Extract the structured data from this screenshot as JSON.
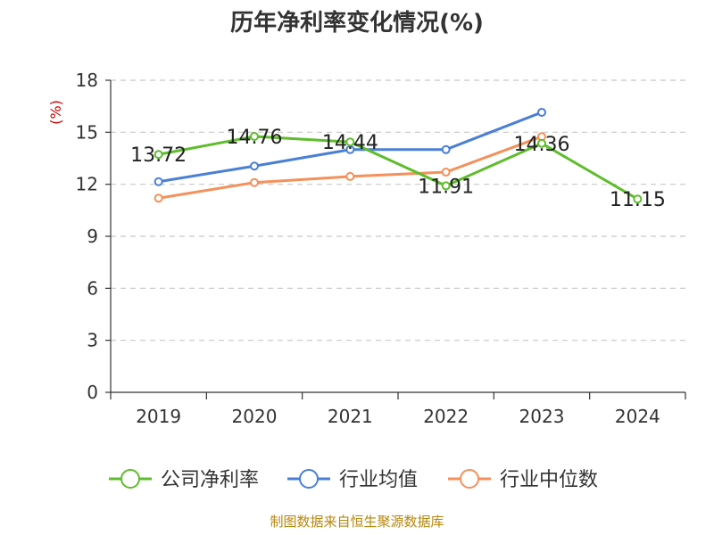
{
  "chart_data": {
    "type": "line",
    "title": "历年净利率变化情况(%)",
    "ylabel": "(%)",
    "xlabel": "",
    "categories": [
      "2019",
      "2020",
      "2021",
      "2022",
      "2023",
      "2024"
    ],
    "ylim": [
      0,
      18
    ],
    "yticks": [
      0,
      3,
      6,
      9,
      12,
      15,
      18
    ],
    "grid": true,
    "legend_position": "bottom",
    "series": [
      {
        "name": "公司净利率",
        "color": "#5ebd2c",
        "values": [
          13.72,
          14.76,
          14.44,
          11.91,
          14.36,
          11.15
        ],
        "labels": [
          "13.72",
          "14.76",
          "14.44",
          "11.91",
          "14.36",
          "11.15"
        ]
      },
      {
        "name": "行业均值",
        "color": "#4a7fd6",
        "values": [
          12.15,
          13.05,
          14.0,
          14.0,
          16.15,
          null
        ]
      },
      {
        "name": "行业中位数",
        "color": "#f5905a",
        "values": [
          11.2,
          12.1,
          12.45,
          12.7,
          14.75,
          null
        ]
      }
    ]
  },
  "footer": {
    "source": "制图数据来自恒生聚源数据库"
  }
}
